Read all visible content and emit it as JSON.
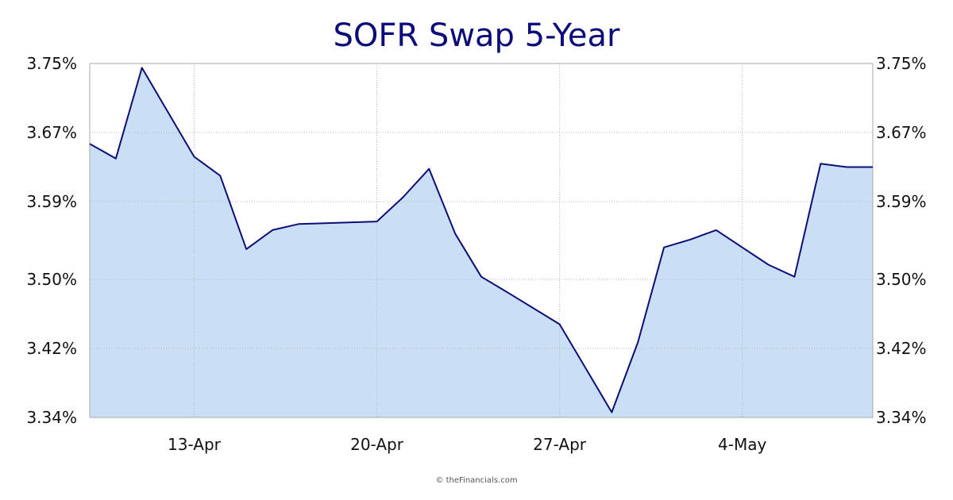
{
  "chart_data": {
    "type": "area",
    "title": "SOFR Swap 5-Year",
    "xlabel": "",
    "ylabel": "",
    "ylim": [
      3.34,
      3.75
    ],
    "xlim": [
      0,
      30
    ],
    "y_ticks": [
      3.34,
      3.42,
      3.5,
      3.59,
      3.67,
      3.75
    ],
    "y_tick_labels": [
      "3.34%",
      "3.42%",
      "3.50%",
      "3.59%",
      "3.67%",
      "3.75%"
    ],
    "x_ticks": [
      4,
      11,
      18,
      25
    ],
    "x_tick_labels": [
      "13-Apr",
      "20-Apr",
      "27-Apr",
      "4-May"
    ],
    "grid": true,
    "legend": "none",
    "series": [
      {
        "name": "SOFR Swap 5-Year",
        "x": [
          0,
          1,
          2,
          4,
          5,
          6,
          7,
          8,
          9,
          11,
          12,
          13,
          14,
          15,
          16,
          18,
          19,
          20,
          21,
          22,
          23,
          24,
          26,
          27,
          28,
          29,
          30
        ],
        "values": [
          3.657,
          3.64,
          3.745,
          3.642,
          3.62,
          3.535,
          3.557,
          3.564,
          3.565,
          3.567,
          3.595,
          3.628,
          3.553,
          3.503,
          3.485,
          3.448,
          3.397,
          3.346,
          3.427,
          3.537,
          3.546,
          3.557,
          3.517,
          3.503,
          3.634,
          3.63,
          3.63
        ]
      }
    ],
    "colors": {
      "line": "#0d0d78",
      "fill": "#c9dff5",
      "grid": "#b8b8b8",
      "frame": "#a8a8a8",
      "title": "#0b0b7a"
    }
  },
  "footer": {
    "copyright": "© theFinancials.com"
  }
}
